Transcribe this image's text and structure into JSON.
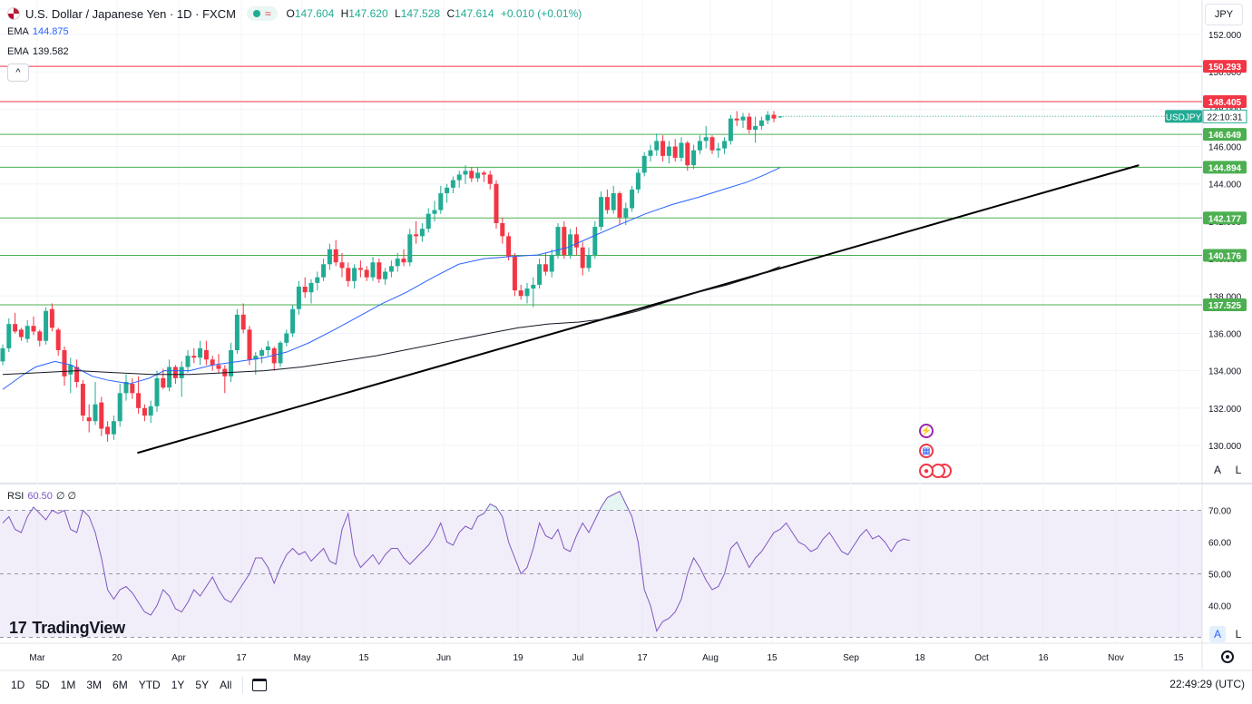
{
  "header": {
    "symbol_title": "U.S. Dollar / Japanese Yen · 1D · FXCM",
    "wave_glyph": "≈",
    "ohlc": [
      {
        "key": "O",
        "value": "147.604"
      },
      {
        "key": "H",
        "value": "147.620"
      },
      {
        "key": "L",
        "value": "147.528"
      },
      {
        "key": "C",
        "value": "147.614"
      },
      {
        "key": "",
        "value": "+0.010 (+0.01%)"
      }
    ],
    "indicators": [
      {
        "name": "EMA",
        "value": "144.875",
        "color": "#2962ff"
      },
      {
        "name": "EMA",
        "value": "139.582",
        "color": "#131722"
      }
    ],
    "collapse_glyph": "^",
    "currency": "JPY"
  },
  "rsi": {
    "name": "RSI",
    "value": "60.50",
    "extra1": "∅",
    "extra2": "∅"
  },
  "logo": {
    "text": "TradingView",
    "mark": "17"
  },
  "scale_buttons": {
    "auto": "A",
    "log": "L"
  },
  "bottom": {
    "timeframes": [
      "1D",
      "5D",
      "1M",
      "3M",
      "6M",
      "YTD",
      "1Y",
      "5Y",
      "All"
    ],
    "clock": "22:49:29 (UTC)"
  },
  "chart_data": {
    "type": "candlestick",
    "symbol": "USDJPY",
    "ylim": [
      128.8,
      152.8
    ],
    "y_ticks": [
      "152.000",
      "150.000",
      "148.000",
      "146.000",
      "144.000",
      "142.000",
      "140.000",
      "138.000",
      "136.000",
      "134.000",
      "132.000",
      "130.000"
    ],
    "x_ticks": [
      "Mar",
      "20",
      "Apr",
      "17",
      "May",
      "15",
      "Jun",
      "19",
      "Jul",
      "17",
      "Aug",
      "15",
      "Sep",
      "18",
      "Oct",
      "16",
      "Nov",
      "15"
    ],
    "horizontal_levels": [
      {
        "value": 150.293,
        "label": "150.293",
        "color": "#f23645"
      },
      {
        "value": 148.405,
        "label": "148.405",
        "color": "#f23645"
      },
      {
        "value": 146.649,
        "label": "146.649",
        "color": "#4caf50"
      },
      {
        "value": 144.894,
        "label": "144.894",
        "color": "#4caf50"
      },
      {
        "value": 142.177,
        "label": "142.177",
        "color": "#4caf50"
      },
      {
        "value": 140.176,
        "label": "140.176",
        "color": "#4caf50"
      },
      {
        "value": 137.525,
        "label": "137.525",
        "color": "#4caf50"
      }
    ],
    "price_label": {
      "symbol": "USDJPY",
      "countdown": "22:10:31",
      "value": 147.614
    },
    "trendline": {
      "start": {
        "date": "2023-03-24",
        "value": 129.6
      },
      "end": {
        "date": "2023-11-09",
        "value": 145.0
      }
    },
    "candles": [
      [
        134.5,
        135.4,
        134.3,
        135.2
      ],
      [
        135.2,
        136.8,
        135.0,
        136.5
      ],
      [
        136.5,
        137.1,
        136.0,
        136.1
      ],
      [
        136.2,
        136.3,
        135.6,
        135.8
      ],
      [
        135.7,
        136.7,
        135.5,
        136.4
      ],
      [
        136.4,
        136.9,
        135.9,
        136.1
      ],
      [
        136.1,
        136.2,
        135.3,
        135.6
      ],
      [
        135.6,
        137.4,
        135.4,
        137.2
      ],
      [
        137.3,
        137.6,
        136.1,
        136.3
      ],
      [
        136.2,
        136.3,
        134.8,
        135.1
      ],
      [
        135.1,
        135.3,
        133.2,
        133.7
      ],
      [
        133.8,
        134.7,
        132.8,
        134.3
      ],
      [
        134.2,
        134.6,
        133.1,
        133.4
      ],
      [
        133.3,
        133.5,
        131.3,
        131.6
      ],
      [
        131.5,
        132.2,
        130.7,
        131.3
      ],
      [
        131.3,
        133.4,
        131.1,
        132.2
      ],
      [
        132.3,
        132.6,
        130.5,
        130.9
      ],
      [
        131.0,
        131.3,
        130.2,
        130.6
      ],
      [
        130.6,
        131.6,
        130.3,
        131.3
      ],
      [
        131.3,
        133.3,
        131.0,
        132.8
      ],
      [
        132.8,
        133.8,
        132.4,
        133.4
      ],
      [
        133.3,
        133.6,
        132.5,
        132.8
      ],
      [
        132.8,
        133.7,
        131.7,
        132.0
      ],
      [
        132.0,
        132.2,
        131.3,
        131.6
      ],
      [
        131.6,
        132.4,
        131.2,
        132.1
      ],
      [
        132.1,
        134.0,
        131.8,
        133.6
      ],
      [
        133.6,
        134.1,
        133.0,
        133.1
      ],
      [
        133.1,
        134.6,
        132.9,
        134.2
      ],
      [
        134.2,
        134.3,
        133.3,
        133.6
      ],
      [
        133.6,
        134.5,
        132.6,
        134.2
      ],
      [
        134.2,
        135.1,
        133.9,
        134.8
      ],
      [
        134.8,
        135.2,
        134.4,
        134.7
      ],
      [
        134.7,
        135.6,
        134.3,
        135.2
      ],
      [
        135.1,
        135.6,
        134.3,
        134.6
      ],
      [
        134.6,
        134.8,
        134.0,
        134.3
      ],
      [
        134.3,
        134.9,
        133.9,
        134.1
      ],
      [
        134.1,
        134.3,
        132.8,
        133.7
      ],
      [
        133.7,
        135.5,
        133.4,
        135.1
      ],
      [
        135.1,
        137.3,
        134.9,
        137.0
      ],
      [
        137.0,
        137.6,
        136.0,
        136.2
      ],
      [
        136.2,
        136.4,
        134.3,
        134.6
      ],
      [
        134.6,
        135.0,
        133.8,
        134.8
      ],
      [
        134.8,
        135.2,
        134.4,
        135.1
      ],
      [
        135.1,
        135.6,
        134.8,
        135.3
      ],
      [
        135.2,
        135.3,
        134.0,
        134.4
      ],
      [
        134.4,
        135.6,
        134.2,
        135.5
      ],
      [
        135.5,
        136.2,
        135.3,
        136.0
      ],
      [
        136.0,
        137.5,
        135.8,
        137.3
      ],
      [
        137.3,
        138.8,
        137.0,
        138.5
      ],
      [
        138.5,
        139.0,
        137.9,
        138.2
      ],
      [
        138.2,
        138.9,
        137.6,
        138.7
      ],
      [
        138.7,
        139.3,
        138.3,
        139.0
      ],
      [
        139.0,
        140.0,
        138.8,
        139.7
      ],
      [
        139.7,
        140.8,
        139.4,
        140.5
      ],
      [
        140.5,
        141.0,
        139.6,
        139.8
      ],
      [
        139.8,
        140.3,
        139.0,
        139.5
      ],
      [
        139.5,
        139.8,
        138.5,
        138.8
      ],
      [
        138.8,
        139.7,
        138.4,
        139.5
      ],
      [
        139.5,
        139.9,
        139.0,
        139.4
      ],
      [
        139.4,
        139.6,
        138.8,
        139.0
      ],
      [
        139.0,
        140.1,
        138.8,
        139.8
      ],
      [
        139.8,
        140.0,
        138.7,
        138.9
      ],
      [
        138.9,
        139.5,
        138.6,
        139.3
      ],
      [
        139.3,
        139.9,
        139.0,
        139.6
      ],
      [
        139.6,
        140.3,
        139.3,
        140.0
      ],
      [
        140.0,
        140.5,
        139.6,
        139.8
      ],
      [
        139.8,
        141.6,
        139.6,
        141.3
      ],
      [
        141.3,
        142.0,
        140.8,
        141.2
      ],
      [
        141.2,
        141.9,
        140.9,
        141.6
      ],
      [
        141.6,
        142.7,
        141.4,
        142.4
      ],
      [
        142.4,
        143.1,
        142.0,
        142.6
      ],
      [
        142.6,
        143.9,
        142.4,
        143.5
      ],
      [
        143.5,
        144.0,
        143.0,
        143.8
      ],
      [
        143.8,
        144.4,
        143.5,
        144.2
      ],
      [
        144.2,
        144.7,
        143.8,
        144.5
      ],
      [
        144.5,
        145.0,
        144.0,
        144.7
      ],
      [
        144.7,
        144.9,
        144.1,
        144.3
      ],
      [
        144.3,
        144.9,
        144.1,
        144.6
      ],
      [
        144.6,
        144.7,
        144.1,
        144.5
      ],
      [
        144.5,
        144.7,
        143.7,
        144.0
      ],
      [
        144.0,
        144.2,
        141.6,
        141.9
      ],
      [
        141.9,
        142.2,
        140.8,
        141.2
      ],
      [
        141.2,
        141.4,
        139.9,
        140.1
      ],
      [
        140.1,
        140.3,
        138.0,
        138.3
      ],
      [
        138.3,
        138.6,
        137.8,
        138.0
      ],
      [
        138.0,
        138.7,
        137.6,
        138.4
      ],
      [
        138.4,
        139.0,
        137.4,
        138.6
      ],
      [
        138.6,
        140.0,
        138.4,
        139.7
      ],
      [
        139.7,
        140.3,
        139.1,
        139.3
      ],
      [
        139.3,
        140.5,
        139.0,
        140.2
      ],
      [
        140.2,
        141.9,
        140.0,
        141.7
      ],
      [
        141.7,
        142.0,
        140.0,
        140.2
      ],
      [
        140.2,
        141.6,
        140.0,
        141.3
      ],
      [
        141.3,
        141.7,
        140.2,
        140.6
      ],
      [
        140.6,
        140.9,
        139.1,
        139.5
      ],
      [
        139.5,
        140.6,
        139.3,
        140.2
      ],
      [
        140.2,
        142.0,
        140.0,
        141.7
      ],
      [
        141.7,
        143.6,
        141.5,
        143.3
      ],
      [
        143.3,
        143.7,
        142.4,
        142.6
      ],
      [
        142.6,
        143.9,
        142.4,
        143.5
      ],
      [
        143.5,
        143.6,
        141.8,
        142.2
      ],
      [
        142.2,
        143.0,
        141.8,
        142.7
      ],
      [
        142.7,
        143.9,
        142.5,
        143.7
      ],
      [
        143.7,
        144.8,
        143.5,
        144.6
      ],
      [
        144.6,
        145.7,
        144.4,
        145.5
      ],
      [
        145.5,
        146.1,
        145.2,
        145.8
      ],
      [
        145.8,
        146.7,
        145.5,
        146.3
      ],
      [
        146.3,
        146.6,
        145.2,
        145.5
      ],
      [
        145.5,
        146.3,
        145.1,
        146.0
      ],
      [
        146.0,
        146.4,
        145.2,
        145.4
      ],
      [
        145.4,
        146.5,
        145.2,
        146.2
      ],
      [
        146.2,
        146.3,
        144.7,
        145.0
      ],
      [
        145.0,
        146.1,
        144.8,
        145.8
      ],
      [
        145.8,
        146.6,
        145.6,
        146.3
      ],
      [
        146.3,
        147.1,
        145.9,
        146.5
      ],
      [
        146.5,
        146.6,
        145.6,
        145.8
      ],
      [
        145.8,
        146.2,
        145.4,
        145.9
      ],
      [
        145.9,
        146.5,
        145.6,
        146.3
      ],
      [
        146.3,
        147.7,
        146.1,
        147.5
      ],
      [
        147.5,
        147.9,
        147.1,
        147.4
      ],
      [
        147.4,
        147.8,
        147.0,
        147.6
      ],
      [
        147.6,
        147.8,
        146.7,
        146.9
      ],
      [
        146.9,
        147.6,
        146.2,
        147.1
      ],
      [
        147.1,
        147.6,
        146.9,
        147.4
      ],
      [
        147.4,
        147.9,
        147.2,
        147.7
      ],
      [
        147.7,
        147.9,
        147.3,
        147.5
      ],
      [
        147.6,
        147.62,
        147.53,
        147.61
      ]
    ],
    "ema_short": {
      "name": "EMA",
      "value": 144.875,
      "color": "#2962ff",
      "points": [
        [
          0,
          133.0
        ],
        [
          14,
          133.8
        ],
        [
          22,
          134.2
        ],
        [
          35,
          134.5
        ],
        [
          46,
          134.3
        ],
        [
          60,
          133.7
        ],
        [
          70,
          133.5
        ],
        [
          85,
          133.3
        ],
        [
          98,
          133.6
        ],
        [
          108,
          134.0
        ],
        [
          125,
          134.0
        ],
        [
          140,
          134.3
        ],
        [
          158,
          134.5
        ],
        [
          175,
          134.7
        ],
        [
          190,
          135.0
        ],
        [
          205,
          135.5
        ],
        [
          222,
          136.2
        ],
        [
          238,
          136.9
        ],
        [
          254,
          137.6
        ],
        [
          270,
          138.2
        ],
        [
          288,
          139.0
        ],
        [
          305,
          139.7
        ],
        [
          322,
          140.0
        ],
        [
          338,
          140.1
        ],
        [
          358,
          140.2
        ],
        [
          378,
          140.6
        ],
        [
          395,
          141.2
        ],
        [
          412,
          141.8
        ],
        [
          430,
          142.4
        ],
        [
          448,
          142.9
        ],
        [
          466,
          143.3
        ],
        [
          482,
          143.7
        ],
        [
          498,
          144.1
        ],
        [
          510,
          144.5
        ],
        [
          520,
          144.875
        ]
      ]
    },
    "ema_long": {
      "name": "EMA",
      "value": 139.582,
      "color": "#131722",
      "points": [
        [
          0,
          133.8
        ],
        [
          25,
          133.9
        ],
        [
          50,
          134.0
        ],
        [
          75,
          133.9
        ],
        [
          100,
          133.8
        ],
        [
          125,
          133.8
        ],
        [
          150,
          133.9
        ],
        [
          175,
          134.0
        ],
        [
          200,
          134.2
        ],
        [
          225,
          134.5
        ],
        [
          250,
          134.8
        ],
        [
          275,
          135.2
        ],
        [
          300,
          135.6
        ],
        [
          325,
          136.0
        ],
        [
          345,
          136.3
        ],
        [
          365,
          136.5
        ],
        [
          385,
          136.6
        ],
        [
          405,
          136.8
        ],
        [
          425,
          137.2
        ],
        [
          445,
          137.7
        ],
        [
          465,
          138.2
        ],
        [
          485,
          138.6
        ],
        [
          505,
          139.1
        ],
        [
          520,
          139.582
        ]
      ]
    },
    "rsi": {
      "name": "RSI",
      "value": 60.5,
      "ylim": [
        30,
        78
      ],
      "ticks": [
        "70.00",
        "60.00",
        "50.00",
        "40.00"
      ],
      "band": [
        30,
        70
      ],
      "mid": 50,
      "values": [
        66,
        68,
        64,
        63,
        68,
        71,
        69,
        67,
        70,
        69,
        70,
        64,
        63,
        70,
        68,
        63,
        55,
        45,
        42,
        45,
        46,
        44,
        41,
        38,
        37,
        40,
        45,
        43,
        39,
        38,
        41,
        45,
        43,
        46,
        49,
        45,
        42,
        41,
        44,
        47,
        50,
        55,
        55,
        52,
        47,
        52,
        56,
        58,
        56,
        57,
        54,
        56,
        58,
        54,
        53,
        64,
        69,
        56,
        52,
        54,
        56,
        53,
        56,
        58,
        58,
        55,
        53,
        55,
        57,
        59,
        62,
        66,
        60,
        59,
        63,
        65,
        64,
        68,
        69,
        72,
        71,
        68,
        60,
        55,
        50,
        52,
        58,
        66,
        62,
        61,
        64,
        58,
        57,
        62,
        66,
        63,
        67,
        71,
        74,
        75,
        76,
        72,
        68,
        60,
        45,
        40,
        32,
        35,
        36,
        38,
        42,
        50,
        55,
        52,
        48,
        45,
        46,
        50,
        58,
        60,
        56,
        52,
        55,
        57,
        60,
        63,
        64,
        66,
        63,
        60,
        59,
        57,
        58,
        61,
        63,
        60,
        57,
        56,
        59,
        62,
        64,
        61,
        62,
        60,
        57,
        60,
        61,
        60.5
      ]
    }
  }
}
